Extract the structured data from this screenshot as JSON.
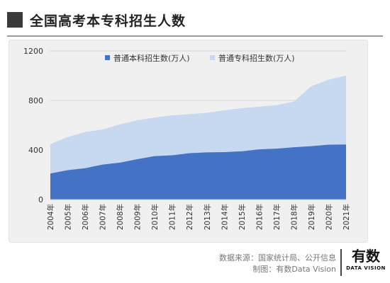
{
  "header": {
    "title": "全国高考本专科招生人数"
  },
  "footer": {
    "source": "数据来源：国家统计局、公开信息",
    "credit": "制图：有数Data Vision",
    "brand_main": "有数",
    "brand_sub": "DATA VISION"
  },
  "chart_data": {
    "type": "area",
    "stacked": false,
    "x": [
      "2004年",
      "2005年",
      "2006年",
      "2007年",
      "2008年",
      "2009年",
      "2010年",
      "2011年",
      "2012年",
      "2013年",
      "2014年",
      "2015年",
      "2016年",
      "2017年",
      "2018年",
      "2019年",
      "2020年",
      "2021年"
    ],
    "series": [
      {
        "name": "普通专科招生数(万人)",
        "color": "#c6d9f1",
        "values": [
          447,
          505,
          546,
          566,
          607,
          640,
          662,
          681,
          689,
          700,
          721,
          738,
          749,
          762,
          791,
          915,
          968,
          1001
        ]
      },
      {
        "name": "普通本科招生数(万人)",
        "color": "#4472c4",
        "values": [
          210,
          237,
          253,
          282,
          298,
          326,
          351,
          357,
          374,
          381,
          383,
          389,
          405,
          411,
          422,
          431,
          443,
          444
        ]
      }
    ],
    "ylim": [
      0,
      1200
    ],
    "yticks": [
      0,
      400,
      800,
      1200
    ],
    "grid": true,
    "legend_position": "top"
  }
}
